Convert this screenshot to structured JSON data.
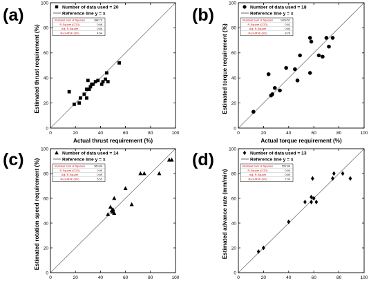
{
  "chart_data": [
    {
      "type": "scatter",
      "panel_label": "(a)",
      "xlabel": "Actual thrust requirement (%)",
      "ylabel": "Estimated thrust requirement (%)",
      "xlim": [
        0,
        100
      ],
      "ylim": [
        0,
        100
      ],
      "xticks": [
        "0",
        "20",
        "40",
        "60",
        "80",
        "100"
      ],
      "yticks": [
        "0",
        "20",
        "40",
        "60",
        "80",
        "100"
      ],
      "marker": "square",
      "legend": {
        "data_label": "Number of data used = 20",
        "ref_label": "Reference line y = x"
      },
      "stats": [
        {
          "name": "Residual Sum of Squares",
          "value": "388.79"
        },
        {
          "name": "R-Square (COD)",
          "value": "0.68"
        },
        {
          "name": "Adj. R-Square",
          "value": "0.66"
        },
        {
          "name": "Root-MSE (SD)",
          "value": "4.64"
        }
      ],
      "points": [
        [
          15,
          29
        ],
        [
          19,
          19
        ],
        [
          23,
          20
        ],
        [
          24,
          24
        ],
        [
          27,
          27
        ],
        [
          29,
          31
        ],
        [
          29,
          24
        ],
        [
          30,
          38
        ],
        [
          31,
          31
        ],
        [
          32,
          33
        ],
        [
          33,
          35
        ],
        [
          34,
          35
        ],
        [
          36,
          37
        ],
        [
          38,
          38
        ],
        [
          41,
          35
        ],
        [
          42,
          37
        ],
        [
          44,
          39
        ],
        [
          45,
          44
        ],
        [
          46,
          37
        ],
        [
          55,
          52
        ]
      ]
    },
    {
      "type": "scatter",
      "panel_label": "(b)",
      "xlabel": "Actual torque requirement (%)",
      "ylabel": "Estimated torque requirement (%)",
      "xlim": [
        0,
        100
      ],
      "ylim": [
        0,
        100
      ],
      "xticks": [
        "0",
        "20",
        "40",
        "60",
        "80",
        "100"
      ],
      "yticks": [
        "0",
        "20",
        "40",
        "60",
        "80",
        "100"
      ],
      "marker": "circle",
      "legend": {
        "data_label": "Number of data used = 18",
        "ref_label": "Reference line y = x"
      },
      "stats": [
        {
          "name": "Residual Sum of Squares",
          "value": "1009.52"
        },
        {
          "name": "R-Square (COD)",
          "value": "0.81"
        },
        {
          "name": "Adj. R-Square",
          "value": "0.80"
        },
        {
          "name": "Root-MSE (SD)",
          "value": "8.29"
        }
      ],
      "points": [
        [
          12,
          13
        ],
        [
          24,
          43
        ],
        [
          26,
          26
        ],
        [
          27,
          27
        ],
        [
          29,
          32
        ],
        [
          33,
          30
        ],
        [
          38,
          48
        ],
        [
          45,
          47
        ],
        [
          47,
          38
        ],
        [
          49,
          58
        ],
        [
          57,
          72
        ],
        [
          57,
          44
        ],
        [
          64,
          58
        ],
        [
          67,
          57
        ],
        [
          70,
          72
        ],
        [
          72,
          65
        ],
        [
          75,
          72
        ],
        [
          58,
          69
        ]
      ]
    },
    {
      "type": "scatter",
      "panel_label": "(c)",
      "xlabel": "Actual rotation speed requirement (%)",
      "ylabel": "Estimated rotation speed requirement (%)",
      "xlim": [
        0,
        100
      ],
      "ylim": [
        0,
        100
      ],
      "xticks": [
        "0",
        "20",
        "40",
        "60",
        "80",
        "100"
      ],
      "yticks": [
        "0",
        "20",
        "40",
        "60",
        "80",
        "100"
      ],
      "marker": "triangle",
      "legend": {
        "data_label": "Number of data used = 14",
        "ref_label": "Reference line y = x"
      },
      "stats": [
        {
          "name": "Residual Sum of Squares",
          "value": "360.84"
        },
        {
          "name": "R-Square (COD)",
          "value": "0.90"
        },
        {
          "name": "Adj. R-Square",
          "value": "0.89"
        },
        {
          "name": "Root-MSE (SD)",
          "value": "5.52"
        }
      ],
      "points": [
        [
          46,
          47
        ],
        [
          48,
          53
        ],
        [
          49,
          50
        ],
        [
          50,
          49
        ],
        [
          51,
          60
        ],
        [
          51,
          48
        ],
        [
          60,
          68
        ],
        [
          65,
          55
        ],
        [
          72,
          80
        ],
        [
          75,
          80
        ],
        [
          87,
          80
        ],
        [
          95,
          91
        ],
        [
          97,
          91
        ],
        [
          50,
          51
        ]
      ]
    },
    {
      "type": "scatter",
      "panel_label": "(d)",
      "xlabel": "Actual advance rate (mm/min)",
      "ylabel": "Estimated advance rate (mm/min)",
      "xlim": [
        0,
        100
      ],
      "ylim": [
        0,
        100
      ],
      "xticks": [
        "0",
        "20",
        "40",
        "60",
        "80",
        "100"
      ],
      "yticks": [
        "0",
        "20",
        "40",
        "60",
        "80",
        "100"
      ],
      "marker": "diamond",
      "legend": {
        "data_label": "Number of data used = 13",
        "ref_label": "Reference line y = x"
      },
      "stats": [
        {
          "name": "Residual Sum of Squares",
          "value": "552.84"
        },
        {
          "name": "R-Square (COD)",
          "value": "0.90"
        },
        {
          "name": "Adj. R-Square",
          "value": "0.89"
        },
        {
          "name": "Root-MSE (SD)",
          "value": "7.09"
        }
      ],
      "points": [
        [
          16,
          17
        ],
        [
          20,
          20
        ],
        [
          40,
          41
        ],
        [
          53,
          57
        ],
        [
          58,
          57
        ],
        [
          58,
          61
        ],
        [
          59,
          76
        ],
        [
          62,
          57
        ],
        [
          75,
          76
        ],
        [
          76,
          80
        ],
        [
          83,
          80
        ],
        [
          89,
          76
        ],
        [
          60,
          60
        ]
      ]
    }
  ]
}
